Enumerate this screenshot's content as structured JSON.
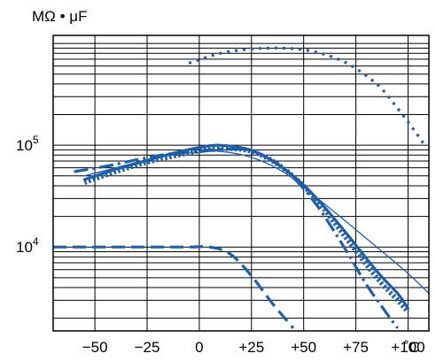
{
  "chart_data": {
    "type": "line",
    "title": "",
    "ylabel": "MΩ • μF",
    "xlabel": "",
    "x_unit": "˚C",
    "y_scale": "log",
    "xlim": [
      -70,
      110
    ],
    "ylim": [
      1500,
      1200000
    ],
    "grid": true,
    "x_ticks": [
      {
        "value": -50,
        "label": "−50"
      },
      {
        "value": -25,
        "label": "−25"
      },
      {
        "value": 0,
        "label": "0"
      },
      {
        "value": 25,
        "label": "+25"
      },
      {
        "value": 50,
        "label": "+50"
      },
      {
        "value": 75,
        "label": "+75"
      },
      {
        "value": 100,
        "label": "+100"
      }
    ],
    "y_ticks": [
      {
        "value": 10000,
        "base": "10",
        "exp": "4"
      },
      {
        "value": 100000,
        "base": "10",
        "exp": "5"
      }
    ],
    "y_grid_values": [
      2000,
      3000,
      4000,
      5000,
      6000,
      7000,
      8000,
      9000,
      10000,
      20000,
      30000,
      40000,
      50000,
      60000,
      70000,
      80000,
      90000,
      100000,
      200000,
      300000,
      400000,
      500000,
      600000,
      700000,
      800000,
      900000,
      1000000
    ],
    "series": [
      {
        "style": "dotted-fine",
        "color": "#1f5fa8",
        "points": [
          [
            -5,
            640000
          ],
          [
            10,
            800000
          ],
          [
            25,
            880000
          ],
          [
            40,
            900000
          ],
          [
            55,
            830000
          ],
          [
            70,
            650000
          ],
          [
            85,
            400000
          ],
          [
            95,
            230000
          ],
          [
            103,
            140000
          ],
          [
            108,
            100000
          ]
        ]
      },
      {
        "style": "thin-solid",
        "color": "#1f5fa8",
        "points": [
          [
            -55,
            50000
          ],
          [
            -40,
            60000
          ],
          [
            -25,
            72000
          ],
          [
            -10,
            82000
          ],
          [
            0,
            85000
          ],
          [
            10,
            87000
          ],
          [
            25,
            76000
          ],
          [
            40,
            55000
          ],
          [
            55,
            32000
          ],
          [
            70,
            18000
          ],
          [
            85,
            10000
          ],
          [
            100,
            5500
          ],
          [
            110,
            3500
          ]
        ]
      },
      {
        "style": "thick-solid",
        "color": "#1f5fa8",
        "points": [
          [
            -55,
            46000
          ],
          [
            -40,
            58000
          ],
          [
            -25,
            71000
          ],
          [
            -10,
            86000
          ],
          [
            0,
            95000
          ],
          [
            10,
            100000
          ],
          [
            25,
            89000
          ],
          [
            40,
            60000
          ],
          [
            55,
            32000
          ],
          [
            70,
            14000
          ],
          [
            85,
            5800
          ],
          [
            95,
            3500
          ],
          [
            100,
            2500
          ]
        ]
      },
      {
        "style": "dotted-heavy",
        "color": "#1f5fa8",
        "points": [
          [
            -55,
            43000
          ],
          [
            -40,
            55000
          ],
          [
            -25,
            68000
          ],
          [
            -10,
            80000
          ],
          [
            0,
            88000
          ],
          [
            10,
            93000
          ],
          [
            25,
            87000
          ],
          [
            40,
            60000
          ],
          [
            55,
            31000
          ],
          [
            70,
            12500
          ],
          [
            85,
            5000
          ],
          [
            95,
            3000
          ],
          [
            100,
            2300
          ]
        ]
      },
      {
        "style": "dash-dot",
        "color": "#1f5fa8",
        "points": [
          [
            -60,
            55000
          ],
          [
            -45,
            62000
          ],
          [
            -30,
            72000
          ],
          [
            -15,
            82000
          ],
          [
            0,
            88000
          ],
          [
            10,
            91000
          ],
          [
            25,
            88000
          ],
          [
            40,
            60000
          ],
          [
            55,
            28000
          ],
          [
            70,
            9500
          ],
          [
            80,
            4300
          ],
          [
            90,
            2200
          ],
          [
            95,
            1600
          ]
        ]
      },
      {
        "style": "dashed",
        "color": "#1f5fa8",
        "points": [
          [
            -70,
            10000
          ],
          [
            -50,
            10000
          ],
          [
            -25,
            10000
          ],
          [
            -5,
            10000
          ],
          [
            5,
            10000
          ],
          [
            15,
            8500
          ],
          [
            25,
            5200
          ],
          [
            35,
            2800
          ],
          [
            45,
            1600
          ]
        ]
      }
    ]
  }
}
